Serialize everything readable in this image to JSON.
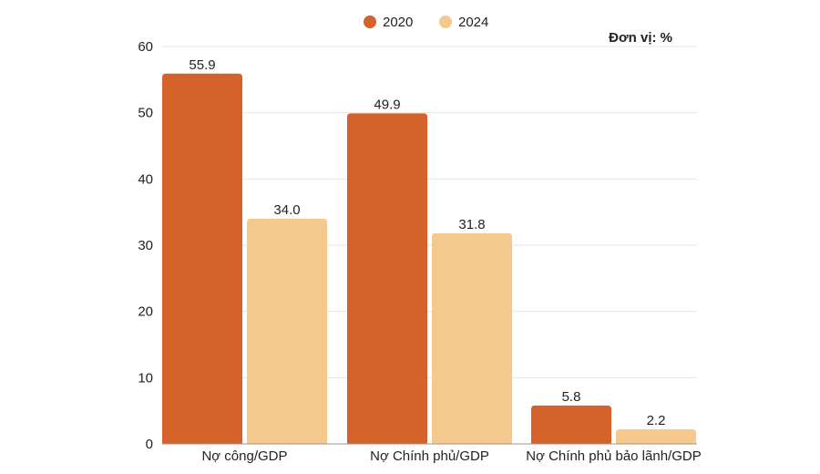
{
  "chart_data": {
    "type": "bar",
    "categories": [
      "Nợ công/GDP",
      "Nợ Chính phủ/GDP",
      "Nợ Chính phủ bảo lãnh/GDP"
    ],
    "series": [
      {
        "name": "2020",
        "values": [
          55.9,
          49.9,
          5.8
        ],
        "value_labels": [
          "55.9",
          "49.9",
          "5.8"
        ],
        "color": "#d4622a"
      },
      {
        "name": "2024",
        "values": [
          34.0,
          31.8,
          2.2
        ],
        "value_labels": [
          "34.0",
          "31.8",
          "2.2"
        ],
        "color": "#f5c98e"
      }
    ],
    "unit_label": "Đơn vị: %",
    "ylim": [
      0,
      60
    ],
    "yticks": [
      "0",
      "10",
      "20",
      "30",
      "40",
      "50",
      "60"
    ],
    "grid": true,
    "legend_position": "top-center"
  }
}
